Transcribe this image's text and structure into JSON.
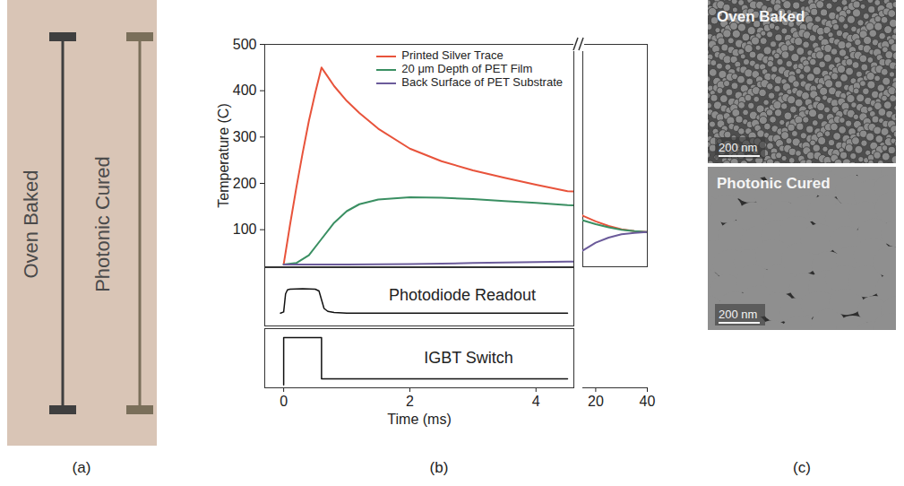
{
  "panel_labels": [
    "(a)",
    "(b)",
    "(c)"
  ],
  "panel_a": {
    "traces": [
      "Oven Baked",
      "Photonic Cured"
    ]
  },
  "panel_c": {
    "images": [
      {
        "title": "Oven Baked",
        "scale_bar": "200 nm"
      },
      {
        "title": "Photonic Cured",
        "scale_bar": "200 nm"
      }
    ]
  },
  "chart_data": [
    {
      "type": "line",
      "ylabel": "Temperature (C)",
      "xlabel": "Time (ms)",
      "ylim": [
        20,
        500
      ],
      "yticks": [
        100,
        200,
        300,
        400,
        500
      ],
      "x_segments": [
        {
          "xlim": [
            -0.3,
            4.6
          ],
          "xticks": [
            0,
            2,
            4
          ]
        },
        {
          "xlim": [
            15,
            40
          ],
          "xticks": [
            20,
            40
          ]
        }
      ],
      "legend": "top-right",
      "series": [
        {
          "name": "Printed Silver Trace",
          "color": "#e8533b",
          "x": [
            0,
            0.1,
            0.2,
            0.3,
            0.4,
            0.5,
            0.6,
            0.7,
            0.8,
            1.0,
            1.2,
            1.5,
            2.0,
            2.5,
            3.0,
            3.5,
            4.0,
            4.5,
            15,
            20,
            25,
            30,
            35,
            40
          ],
          "values": [
            25,
            110,
            190,
            265,
            335,
            395,
            450,
            430,
            410,
            378,
            352,
            318,
            275,
            248,
            228,
            212,
            197,
            183,
            130,
            118,
            108,
            101,
            97,
            95
          ]
        },
        {
          "name": "20 μm Depth of PET Film",
          "color": "#3a8f62",
          "x": [
            0,
            0.2,
            0.4,
            0.6,
            0.8,
            1.0,
            1.2,
            1.5,
            2.0,
            2.5,
            3.0,
            3.5,
            4.0,
            4.5,
            15,
            20,
            25,
            30,
            35,
            40
          ],
          "values": [
            25,
            28,
            45,
            80,
            115,
            140,
            155,
            165,
            170,
            169,
            166,
            162,
            158,
            153,
            120,
            112,
            105,
            100,
            97,
            95
          ]
        },
        {
          "name": "Back Surface of PET Substrate",
          "color": "#6b5b9a",
          "x": [
            0,
            1,
            2,
            3,
            4,
            4.5,
            15,
            20,
            25,
            30,
            35,
            40
          ],
          "values": [
            25,
            25,
            26,
            28,
            30,
            31,
            55,
            72,
            83,
            90,
            93,
            95
          ]
        }
      ]
    },
    {
      "type": "line",
      "title": "Photodiode Readout",
      "ylim": [
        0,
        1
      ],
      "tick_labels": false,
      "color": "#111111",
      "x": [
        -0.05,
        0,
        0.03,
        0.06,
        0.1,
        0.3,
        0.5,
        0.56,
        0.6,
        0.64,
        0.7,
        0.8,
        1,
        2,
        3,
        4,
        4.5
      ],
      "values": [
        0.22,
        0.24,
        0.55,
        0.62,
        0.63,
        0.64,
        0.63,
        0.6,
        0.45,
        0.3,
        0.25,
        0.23,
        0.22,
        0.22,
        0.22,
        0.22,
        0.22
      ]
    },
    {
      "type": "line",
      "title": "IGBT Switch",
      "ylim": [
        0,
        1
      ],
      "tick_labels": false,
      "color": "#111111",
      "x": [
        0,
        0,
        0.6,
        0.6,
        4.5
      ],
      "values": [
        0.05,
        0.85,
        0.85,
        0.15,
        0.15
      ]
    }
  ]
}
